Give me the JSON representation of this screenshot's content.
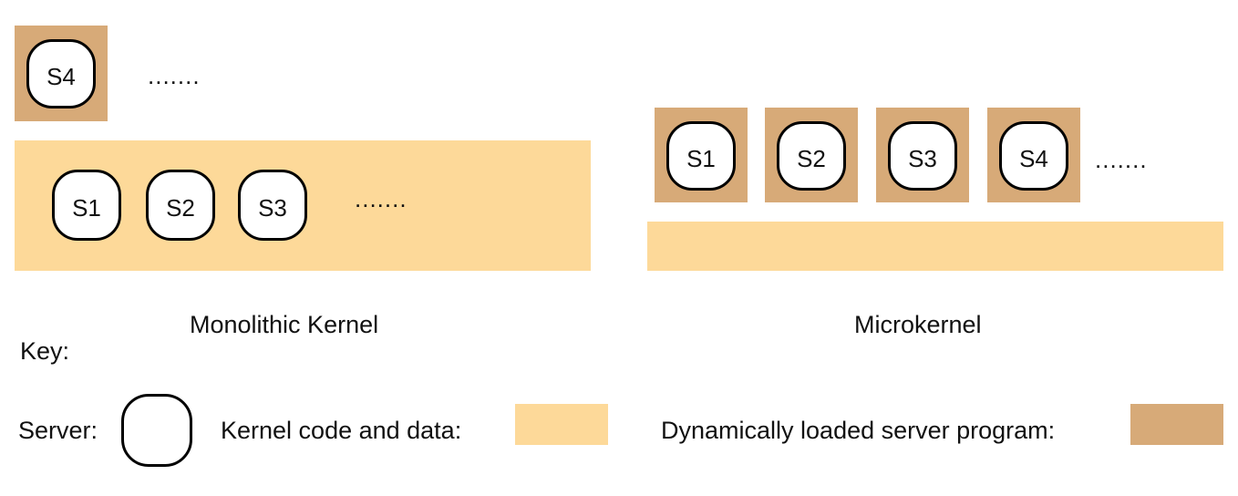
{
  "monolithic": {
    "caption": "Monolithic Kernel",
    "loaded_server": "S4",
    "loaded_ellipsis": ".......",
    "kernel_servers": [
      "S1",
      "S2",
      "S3"
    ],
    "kernel_ellipsis": "......."
  },
  "microkernel": {
    "caption": "Microkernel",
    "servers": [
      "S1",
      "S2",
      "S3",
      "S4"
    ],
    "ellipsis": "......."
  },
  "key": {
    "title": "Key:",
    "server_label": "Server:",
    "kernel_label": "Kernel code and data:",
    "loaded_label": "Dynamically loaded server program:"
  },
  "colors": {
    "kernel_code_and_data": "#fdd999",
    "dynamically_loaded_server": "#d7aa78"
  }
}
